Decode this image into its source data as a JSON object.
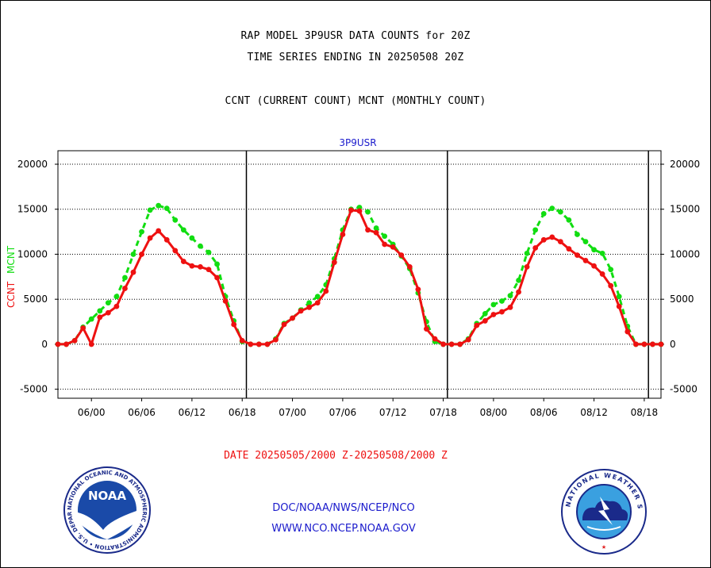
{
  "titles": {
    "line1": "RAP MODEL 3P9USR DATA COUNTS for 20Z",
    "line2": "TIME SERIES ENDING IN 20250508 20Z",
    "line3": "CCNT (CURRENT COUNT) MCNT (MONTHLY COUNT)"
  },
  "chart_data": {
    "type": "line",
    "title": "3P9USR",
    "ylabel_ccnt": "CCNT",
    "ylabel_mcnt": "MCNT",
    "ylim": [
      -6000,
      21500
    ],
    "yticks": [
      20000,
      15000,
      10000,
      5000,
      0,
      -5000
    ],
    "ytick_labels": [
      "20000",
      "15000",
      "10000",
      "5000",
      "0",
      "-5000"
    ],
    "xlim": [
      -4,
      68
    ],
    "xticks": [
      0,
      6,
      12,
      18,
      24,
      30,
      36,
      42,
      48,
      54,
      60,
      66
    ],
    "xtick_labels": [
      "06/00",
      "06/06",
      "06/12",
      "06/18",
      "07/00",
      "07/06",
      "07/12",
      "07/18",
      "08/00",
      "08/06",
      "08/12",
      "08/18"
    ],
    "day_boundaries": [
      18.5,
      42.5,
      66.5
    ],
    "xlabel": "DATE 20250505/2000 Z-20250508/2000 Z",
    "grid": "dotted horizontal",
    "colors": {
      "ccnt": "#ee1111",
      "mcnt": "#11dd11",
      "title": "#1a1acc",
      "xlabel": "#ee1111"
    },
    "series": [
      {
        "name": "CCNT",
        "style": "solid",
        "x": [
          -4,
          -3,
          -2,
          -1,
          0,
          1,
          2,
          3,
          4,
          5,
          6,
          7,
          8,
          9,
          10,
          11,
          12,
          13,
          14,
          15,
          16,
          17,
          18,
          19,
          20,
          21,
          22,
          23,
          24,
          25,
          26,
          27,
          28,
          29,
          30,
          31,
          32,
          33,
          34,
          35,
          36,
          37,
          38,
          39,
          40,
          41,
          42,
          43,
          44,
          45,
          46,
          47,
          48,
          49,
          50,
          51,
          52,
          53,
          54,
          55,
          56,
          57,
          58,
          59,
          60,
          61,
          62,
          63,
          64,
          65,
          66,
          67,
          68
        ],
        "values": [
          0,
          0,
          400,
          1800,
          0,
          3000,
          3500,
          4200,
          6200,
          8000,
          10000,
          11800,
          12600,
          11600,
          10400,
          9200,
          8700,
          8600,
          8300,
          7400,
          4800,
          2200,
          400,
          0,
          0,
          0,
          500,
          2200,
          2900,
          3700,
          4100,
          4600,
          5900,
          9100,
          12200,
          14900,
          14800,
          12700,
          12400,
          11100,
          10800,
          9900,
          8600,
          6100,
          1700,
          600,
          0,
          0,
          0,
          500,
          2100,
          2600,
          3300,
          3600,
          4100,
          5800,
          8600,
          10700,
          11600,
          11900,
          11400,
          10600,
          9900,
          9300,
          8700,
          7800,
          6500,
          4200,
          1400,
          0,
          0,
          0,
          0
        ]
      },
      {
        "name": "MCNT",
        "style": "dashed",
        "x": [
          -4,
          -3,
          -2,
          -1,
          0,
          1,
          2,
          3,
          4,
          5,
          6,
          7,
          8,
          9,
          10,
          11,
          12,
          13,
          14,
          15,
          16,
          17,
          18,
          19,
          20,
          21,
          22,
          23,
          24,
          25,
          26,
          27,
          28,
          29,
          30,
          31,
          32,
          33,
          34,
          35,
          36,
          37,
          38,
          39,
          40,
          41,
          42,
          43,
          44,
          45,
          46,
          47,
          48,
          49,
          50,
          51,
          52,
          53,
          54,
          55,
          56,
          57,
          58,
          59,
          60,
          61,
          62,
          63,
          64,
          65,
          66,
          67,
          68
        ],
        "values": [
          0,
          0,
          400,
          1900,
          2800,
          3700,
          4600,
          5300,
          7400,
          10000,
          12500,
          14900,
          15400,
          15100,
          13800,
          12700,
          11800,
          10900,
          10200,
          8900,
          5300,
          2600,
          300,
          0,
          0,
          0,
          600,
          2300,
          2900,
          3800,
          4600,
          5300,
          6600,
          9500,
          12700,
          15000,
          15200,
          14700,
          12900,
          12000,
          11100,
          9800,
          8400,
          5700,
          2500,
          300,
          0,
          0,
          0,
          600,
          2300,
          3400,
          4400,
          4800,
          5400,
          7100,
          10100,
          12700,
          14500,
          15100,
          14700,
          13800,
          12200,
          11400,
          10500,
          10100,
          8300,
          5300,
          2000,
          0,
          0,
          0,
          0
        ]
      }
    ]
  },
  "footer": {
    "line1": "DOC/NOAA/NWS/NCEP/NCO",
    "line2": "WWW.NCO.NCEP.NOAA.GOV"
  },
  "logos": {
    "noaa_text": "NOAA",
    "noaa_ring": "NATIONAL OCEANIC AND ATMOSPHERIC ADMINISTRATION • U.S. DEPARTMENT OF COMMERCE •",
    "nws_ring": "NATIONAL WEATHER SERVICE"
  }
}
